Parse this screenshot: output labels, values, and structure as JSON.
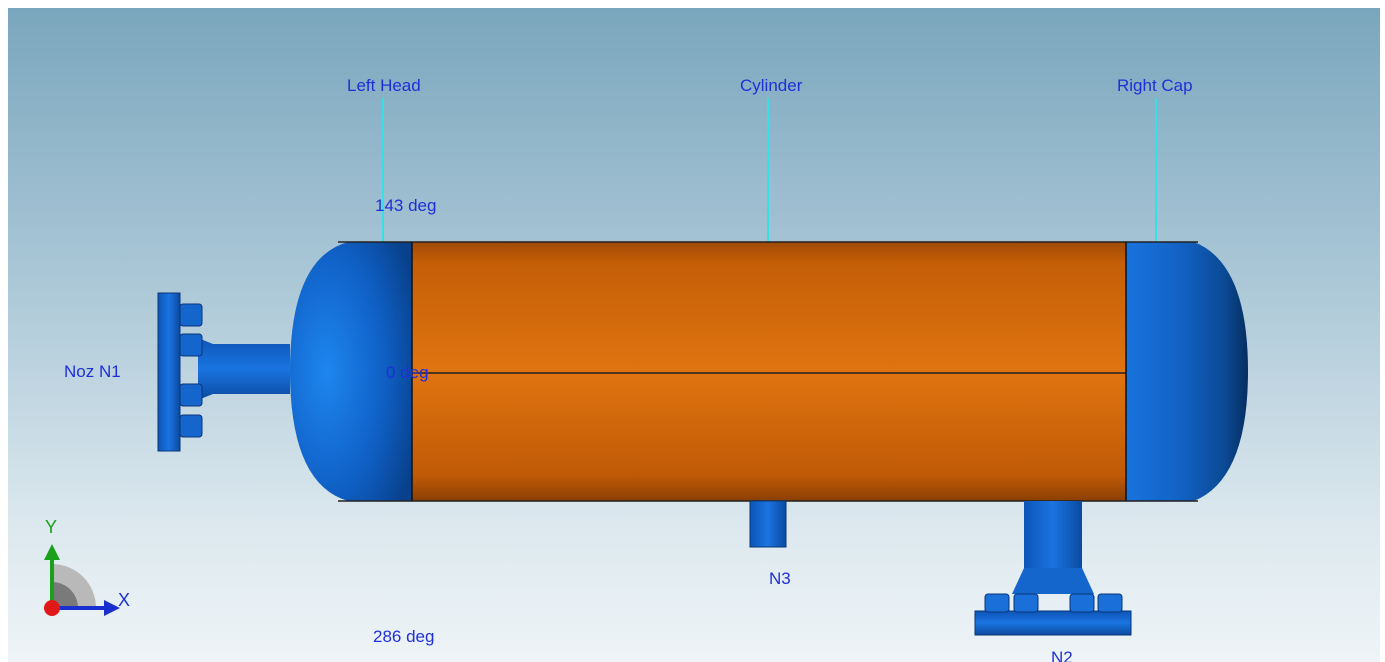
{
  "scene": {
    "labels": {
      "left_head": "Left Head",
      "cylinder": "Cylinder",
      "right_cap": "Right Cap",
      "noz_n1": "Noz N1",
      "n3": "N3",
      "n2": "N2"
    },
    "angles": {
      "top": "143 deg",
      "middle": "0 deg",
      "bottom": "286 deg"
    },
    "axes": {
      "y": "Y",
      "x": "X"
    },
    "colors": {
      "shell": "#d9680a",
      "heads": "#1565c8",
      "leader": "#35e1e6",
      "label_text": "#1f2fd8"
    }
  }
}
